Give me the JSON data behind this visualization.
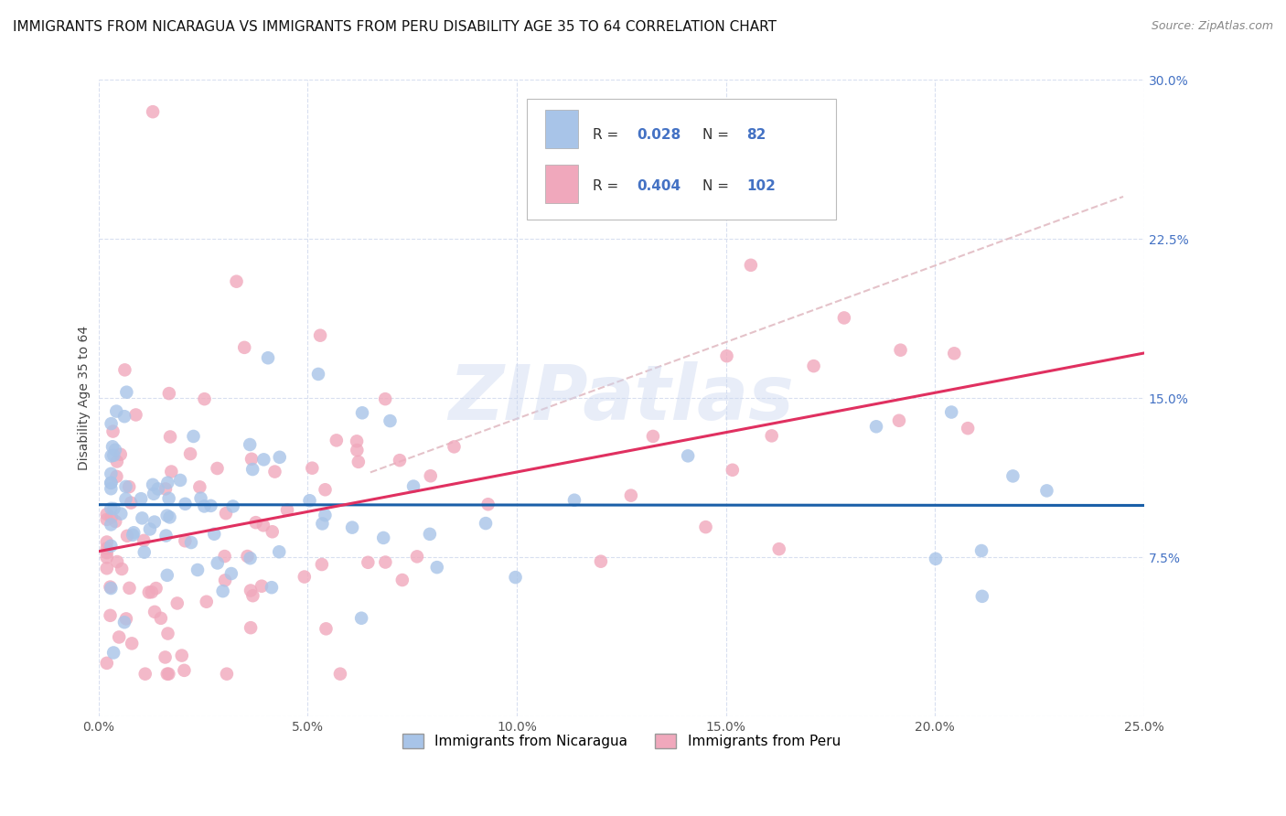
{
  "title": "IMMIGRANTS FROM NICARAGUA VS IMMIGRANTS FROM PERU DISABILITY AGE 35 TO 64 CORRELATION CHART",
  "source": "Source: ZipAtlas.com",
  "ylabel": "Disability Age 35 to 64",
  "x_min": 0.0,
  "x_max": 0.25,
  "y_min": 0.0,
  "y_max": 0.3,
  "xtick_vals": [
    0.0,
    0.05,
    0.1,
    0.15,
    0.2,
    0.25
  ],
  "xtick_labels": [
    "0.0%",
    "5.0%",
    "10.0%",
    "15.0%",
    "20.0%",
    "25.0%"
  ],
  "ytick_vals": [
    0.0,
    0.075,
    0.15,
    0.225,
    0.3
  ],
  "ytick_labels": [
    "",
    "7.5%",
    "15.0%",
    "22.5%",
    "30.0%"
  ],
  "legend_labels": [
    "Immigrants from Nicaragua",
    "Immigrants from Peru"
  ],
  "r_nicaragua": 0.028,
  "n_nicaragua": 82,
  "r_peru": 0.404,
  "n_peru": 102,
  "color_nicaragua": "#a8c4e8",
  "color_peru": "#f0a8bc",
  "trend_color_nicaragua": "#1a5fa8",
  "trend_color_peru": "#e03060",
  "dashed_line_color": "#e0b8c0",
  "watermark": "ZIPatlas",
  "background_color": "#ffffff",
  "grid_color": "#d8dff0",
  "title_fontsize": 11,
  "axis_label_fontsize": 10,
  "tick_fontsize": 10,
  "legend_fontsize": 11,
  "tick_color_y": "#4472c4",
  "tick_color_x": "#555555"
}
